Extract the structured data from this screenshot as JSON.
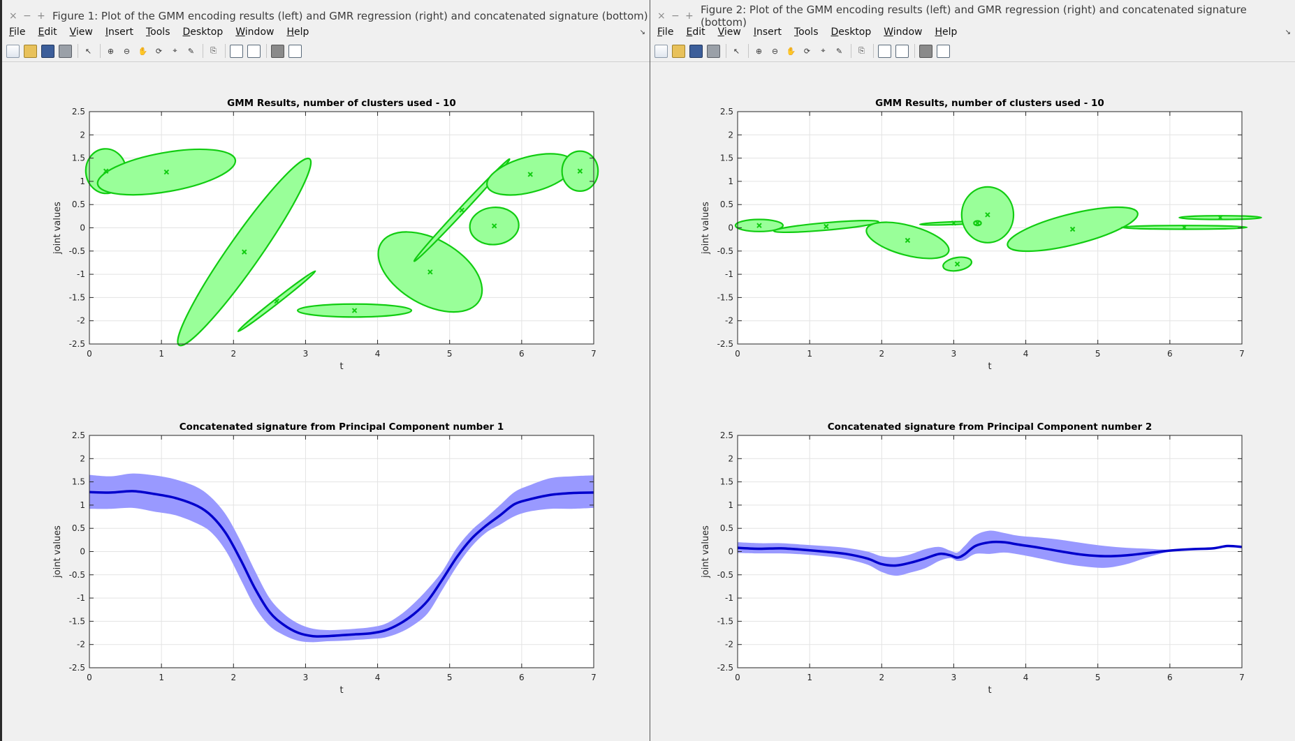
{
  "colors": {
    "gmm_fill": "#99ff99",
    "gmm_stroke": "#11cc11",
    "band_fill": "#9999ff",
    "mean_line": "#0000cc",
    "grid": "#e3e3e3"
  },
  "menu": {
    "items": [
      "File",
      "Edit",
      "View",
      "Insert",
      "Tools",
      "Desktop",
      "Window",
      "Help"
    ],
    "underline": [
      "F",
      "E",
      "V",
      "I",
      "T",
      "D",
      "W",
      "H"
    ]
  },
  "toolbar_icons": [
    "new-file-icon",
    "open-folder-icon",
    "save-icon",
    "print-icon",
    "select-arrow-icon",
    "zoom-in-icon",
    "zoom-out-icon",
    "pan-hand-icon",
    "rotate-3d-icon",
    "data-cursor-icon",
    "brush-icon",
    "link-plot-icon",
    "colorbar-icon",
    "legend-icon",
    "hide-tools-icon",
    "show-tools-icon"
  ],
  "windows": [
    {
      "title": "Figure 1: Plot of the GMM encoding results (left) and GMR regression (right) and concatenated signature (bottom)",
      "win_buttons": [
        "×",
        "−",
        "+"
      ],
      "top_plot": {
        "title": "GMM Results, number of clusters used -  10",
        "xlabel": "t",
        "ylabel": "joint values"
      },
      "bottom_plot": {
        "title": "Concatenated signature  from Principal Component number 1",
        "xlabel": "t",
        "ylabel": "joint values"
      }
    },
    {
      "title": "Figure 2: Plot of the GMM encoding results (left) and GMR regression (right) and concatenated signature (bottom)",
      "win_buttons": [
        "×",
        "−",
        "+"
      ],
      "top_plot": {
        "title": "GMM Results, number of clusters used -  10",
        "xlabel": "t",
        "ylabel": "joint values"
      },
      "bottom_plot": {
        "title": "Concatenated signature  from Principal Component number 2",
        "xlabel": "t",
        "ylabel": "joint values"
      }
    }
  ],
  "axes": {
    "xlim": [
      0,
      7
    ],
    "ylim": [
      -2.5,
      2.5
    ],
    "xticks": [
      "0",
      "1",
      "2",
      "3",
      "4",
      "5",
      "6",
      "7"
    ],
    "yticks": [
      "2.5",
      "2",
      "1.5",
      "1",
      "0.5",
      "0",
      "-0.5",
      "-1",
      "-1.5",
      "-2",
      "-2.5"
    ],
    "grid": true
  },
  "chart_data": [
    {
      "type": "scatter",
      "title": "GMM Results, number of clusters used -  10",
      "xlabel": "t",
      "ylabel": "joint values",
      "xlim": [
        0,
        7
      ],
      "ylim": [
        -2.5,
        2.5
      ],
      "gaussians": [
        {
          "mu": [
            0.23,
            1.22
          ],
          "semi_axes": [
            0.28,
            0.48
          ],
          "angle_deg": -5
        },
        {
          "mu": [
            1.07,
            1.2
          ],
          "semi_axes": [
            0.97,
            0.42
          ],
          "angle_deg": -10
        },
        {
          "mu": [
            2.15,
            -0.52
          ],
          "semi_axes": [
            1.58,
            0.34
          ],
          "angle_deg": -55
        },
        {
          "mu": [
            2.6,
            -1.58
          ],
          "semi_axes": [
            0.68,
            0.05
          ],
          "angle_deg": -38
        },
        {
          "mu": [
            3.68,
            -1.78
          ],
          "semi_axes": [
            0.79,
            0.14
          ],
          "angle_deg": 0
        },
        {
          "mu": [
            4.73,
            -0.95
          ],
          "semi_axes": [
            0.79,
            0.7
          ],
          "angle_deg": 30
        },
        {
          "mu": [
            5.17,
            0.38
          ],
          "semi_axes": [
            0.97,
            0.06
          ],
          "angle_deg": -47
        },
        {
          "mu": [
            5.62,
            0.04
          ],
          "semi_axes": [
            0.34,
            0.4
          ],
          "angle_deg": -5
        },
        {
          "mu": [
            6.12,
            1.15
          ],
          "semi_axes": [
            0.62,
            0.38
          ],
          "angle_deg": -15
        },
        {
          "mu": [
            6.81,
            1.22
          ],
          "semi_axes": [
            0.25,
            0.43
          ],
          "angle_deg": 0
        }
      ]
    },
    {
      "type": "area",
      "title": "Concatenated signature  from Principal Component number 1",
      "xlabel": "t",
      "ylabel": "joint values",
      "xlim": [
        0,
        7
      ],
      "ylim": [
        -2.5,
        2.5
      ],
      "x": [
        0,
        0.3,
        0.6,
        0.9,
        1.2,
        1.5,
        1.7,
        1.9,
        2.1,
        2.3,
        2.5,
        2.7,
        2.9,
        3.1,
        3.3,
        3.5,
        3.7,
        3.9,
        4.1,
        4.3,
        4.5,
        4.7,
        4.9,
        5.1,
        5.3,
        5.5,
        5.7,
        5.9,
        6.1,
        6.4,
        6.7,
        7
      ],
      "mean": [
        1.28,
        1.27,
        1.3,
        1.24,
        1.15,
        0.98,
        0.76,
        0.38,
        -0.18,
        -0.8,
        -1.3,
        -1.58,
        -1.75,
        -1.82,
        -1.82,
        -1.8,
        -1.78,
        -1.76,
        -1.7,
        -1.56,
        -1.35,
        -1.05,
        -0.6,
        -0.12,
        0.27,
        0.55,
        0.78,
        1.02,
        1.12,
        1.22,
        1.26,
        1.27
      ],
      "upper": [
        1.65,
        1.62,
        1.68,
        1.64,
        1.55,
        1.38,
        1.15,
        0.78,
        0.22,
        -0.42,
        -1.0,
        -1.34,
        -1.55,
        -1.66,
        -1.69,
        -1.68,
        -1.66,
        -1.63,
        -1.56,
        -1.38,
        -1.12,
        -0.8,
        -0.42,
        0.08,
        0.45,
        0.72,
        1.0,
        1.28,
        1.42,
        1.58,
        1.62,
        1.64
      ],
      "lower": [
        0.92,
        0.92,
        0.94,
        0.86,
        0.78,
        0.6,
        0.4,
        0.0,
        -0.6,
        -1.2,
        -1.6,
        -1.8,
        -1.92,
        -1.95,
        -1.93,
        -1.92,
        -1.9,
        -1.88,
        -1.85,
        -1.75,
        -1.58,
        -1.32,
        -0.82,
        -0.32,
        0.1,
        0.4,
        0.58,
        0.76,
        0.86,
        0.92,
        0.92,
        0.94
      ]
    },
    {
      "type": "scatter",
      "title": "GMM Results, number of clusters used -  10",
      "xlabel": "t",
      "ylabel": "joint values",
      "xlim": [
        0,
        7
      ],
      "ylim": [
        -2.5,
        2.5
      ],
      "gaussians": [
        {
          "mu": [
            0.3,
            0.05
          ],
          "semi_axes": [
            0.33,
            0.13
          ],
          "angle_deg": 0
        },
        {
          "mu": [
            1.23,
            0.03
          ],
          "semi_axes": [
            0.73,
            0.08
          ],
          "angle_deg": -5
        },
        {
          "mu": [
            2.36,
            -0.27
          ],
          "semi_axes": [
            0.59,
            0.32
          ],
          "angle_deg": 15
        },
        {
          "mu": [
            3.05,
            -0.78
          ],
          "semi_axes": [
            0.2,
            0.14
          ],
          "angle_deg": -10
        },
        {
          "mu": [
            3.0,
            0.1
          ],
          "semi_axes": [
            0.47,
            0.03
          ],
          "angle_deg": -2
        },
        {
          "mu": [
            3.47,
            0.28
          ],
          "semi_axes": [
            0.36,
            0.6
          ],
          "angle_deg": 0
        },
        {
          "mu": [
            4.65,
            -0.03
          ],
          "semi_axes": [
            0.93,
            0.33
          ],
          "angle_deg": -14
        },
        {
          "mu": [
            6.2,
            0.01
          ],
          "semi_axes": [
            0.87,
            0.04
          ],
          "angle_deg": 0
        },
        {
          "mu": [
            6.7,
            0.22
          ],
          "semi_axes": [
            0.57,
            0.04
          ],
          "angle_deg": 0
        },
        {
          "mu": [
            3.33,
            0.1
          ],
          "semi_axes": [
            0.05,
            0.05
          ],
          "angle_deg": 0
        }
      ]
    },
    {
      "type": "area",
      "title": "Concatenated signature  from Principal Component number 2",
      "xlabel": "t",
      "ylabel": "joint values",
      "xlim": [
        0,
        7
      ],
      "ylim": [
        -2.5,
        2.5
      ],
      "x": [
        0,
        0.3,
        0.6,
        0.9,
        1.2,
        1.5,
        1.8,
        2.0,
        2.2,
        2.4,
        2.6,
        2.8,
        2.95,
        3.05,
        3.15,
        3.3,
        3.5,
        3.7,
        3.9,
        4.2,
        4.5,
        4.8,
        5.1,
        5.4,
        5.7,
        6.0,
        6.3,
        6.6,
        6.8,
        7
      ],
      "mean": [
        0.08,
        0.06,
        0.07,
        0.04,
        0.0,
        -0.05,
        -0.15,
        -0.27,
        -0.3,
        -0.24,
        -0.15,
        -0.05,
        -0.08,
        -0.13,
        -0.06,
        0.12,
        0.2,
        0.2,
        0.15,
        0.08,
        0.0,
        -0.07,
        -0.1,
        -0.08,
        -0.03,
        0.02,
        0.05,
        0.07,
        0.12,
        0.1
      ],
      "upper": [
        0.2,
        0.18,
        0.18,
        0.15,
        0.12,
        0.08,
        0.0,
        -0.1,
        -0.12,
        -0.06,
        0.05,
        0.1,
        0.02,
        -0.02,
        0.12,
        0.35,
        0.45,
        0.4,
        0.34,
        0.3,
        0.25,
        0.18,
        0.12,
        0.08,
        0.06,
        0.04,
        0.06,
        0.08,
        0.13,
        0.11
      ],
      "lower": [
        -0.03,
        -0.04,
        -0.04,
        -0.06,
        -0.1,
        -0.16,
        -0.28,
        -0.44,
        -0.52,
        -0.45,
        -0.36,
        -0.2,
        -0.14,
        -0.2,
        -0.18,
        -0.05,
        -0.05,
        -0.02,
        -0.06,
        -0.15,
        -0.25,
        -0.32,
        -0.35,
        -0.27,
        -0.12,
        0.0,
        0.04,
        0.06,
        0.11,
        0.09
      ]
    }
  ]
}
